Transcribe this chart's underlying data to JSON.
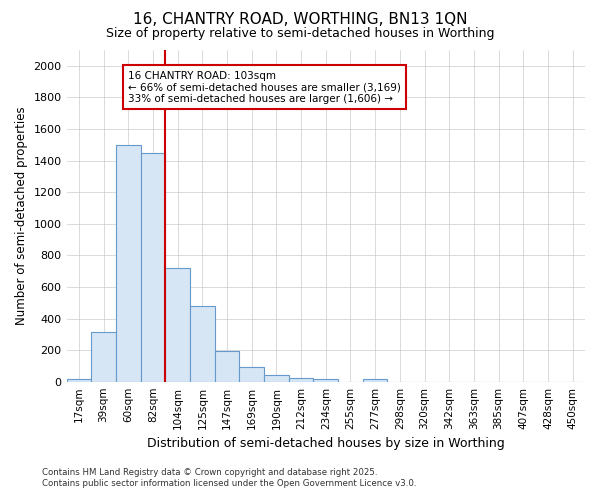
{
  "title1": "16, CHANTRY ROAD, WORTHING, BN13 1QN",
  "title2": "Size of property relative to semi-detached houses in Worthing",
  "xlabel": "Distribution of semi-detached houses by size in Worthing",
  "ylabel": "Number of semi-detached properties",
  "bar_labels": [
    "17sqm",
    "39sqm",
    "60sqm",
    "82sqm",
    "104sqm",
    "125sqm",
    "147sqm",
    "169sqm",
    "190sqm",
    "212sqm",
    "234sqm",
    "255sqm",
    "277sqm",
    "298sqm",
    "320sqm",
    "342sqm",
    "363sqm",
    "385sqm",
    "407sqm",
    "428sqm",
    "450sqm"
  ],
  "bar_values": [
    20,
    315,
    1500,
    1450,
    720,
    480,
    195,
    90,
    45,
    25,
    20,
    0,
    15,
    0,
    0,
    0,
    0,
    0,
    0,
    0,
    0
  ],
  "bar_color": "#d6e6f5",
  "bar_edge_color": "#6699cc",
  "vline_color": "#cc0000",
  "annotation_title": "16 CHANTRY ROAD: 103sqm",
  "annotation_line1": "← 66% of semi-detached houses are smaller (3,169)",
  "annotation_line2": "33% of semi-detached houses are larger (1,606) →",
  "annotation_box_color": "#cc0000",
  "ylim": [
    0,
    2100
  ],
  "yticks": [
    0,
    200,
    400,
    600,
    800,
    1000,
    1200,
    1400,
    1600,
    1800,
    2000
  ],
  "footer1": "Contains HM Land Registry data © Crown copyright and database right 2025.",
  "footer2": "Contains public sector information licensed under the Open Government Licence v3.0.",
  "background_color": "#ffffff",
  "grid_color": "#cccccc"
}
